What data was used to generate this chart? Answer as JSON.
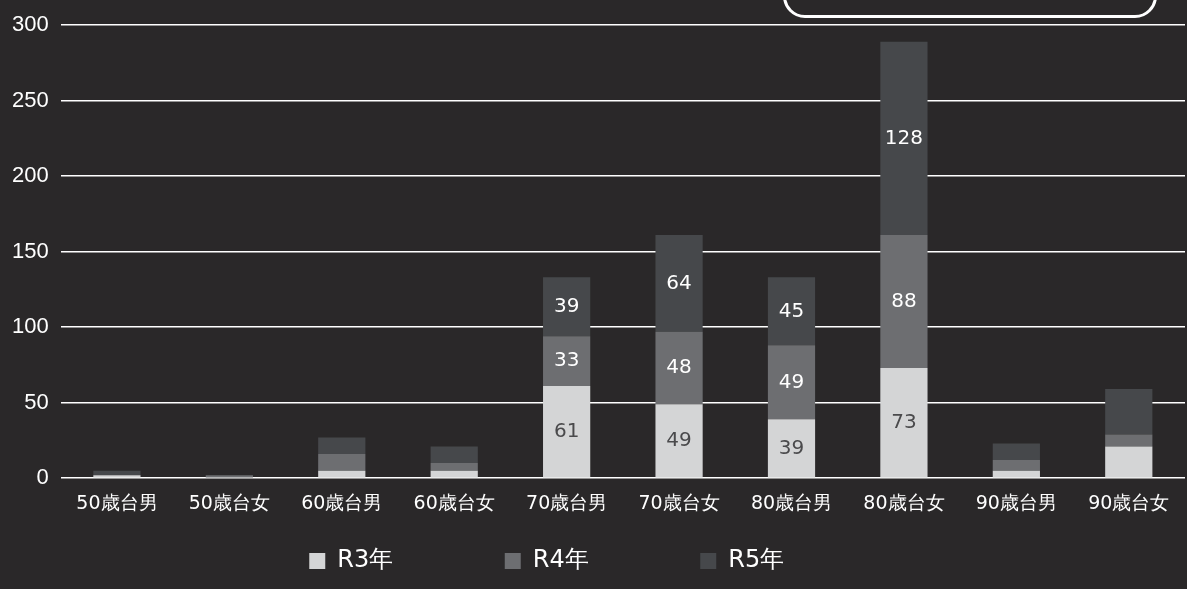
{
  "chart_data": {
    "type": "bar",
    "stacked": true,
    "categories": [
      "50歳台男",
      "50歳台女",
      "60歳台男",
      "60歳台女",
      "70歳台男",
      "70歳台女",
      "80歳台男",
      "80歳台女",
      "90歳台男",
      "90歳台女"
    ],
    "series": [
      {
        "name": "R3年",
        "color": "#d4d5d6",
        "values": [
          2,
          null,
          5,
          5,
          61,
          49,
          39,
          73,
          5,
          21
        ],
        "value_labels": [
          null,
          null,
          null,
          null,
          "61",
          "49",
          "39",
          "73",
          null,
          null
        ]
      },
      {
        "name": "R4年",
        "color": "#6d6e71",
        "values": [
          null,
          2,
          11,
          5,
          33,
          48,
          49,
          88,
          7,
          8
        ],
        "value_labels": [
          null,
          null,
          null,
          null,
          "33",
          "48",
          "49",
          "88",
          null,
          null
        ]
      },
      {
        "name": "R5年",
        "color": "#46484b",
        "values": [
          3,
          null,
          11,
          11,
          39,
          64,
          45,
          128,
          11,
          30
        ],
        "value_labels": [
          null,
          null,
          null,
          null,
          "39",
          "64",
          "45",
          "128",
          null,
          null
        ]
      }
    ],
    "ylim": [
      0,
      300
    ],
    "yticks": [
      0,
      50,
      100,
      150,
      200,
      250,
      300
    ],
    "grid": "y",
    "legend": "bottom"
  }
}
